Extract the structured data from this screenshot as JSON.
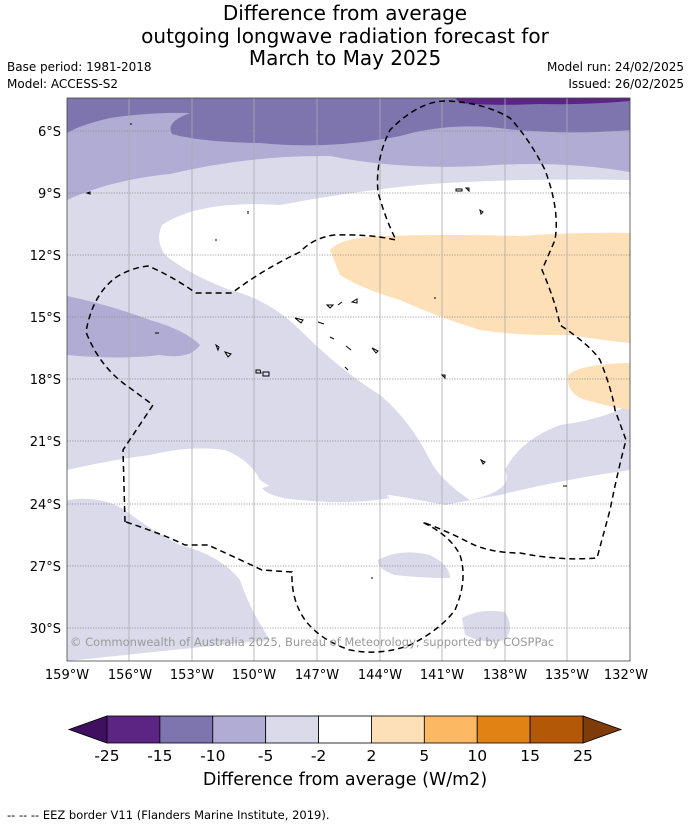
{
  "title": {
    "line1": "Difference from average",
    "line2": "outgoing longwave radiation forecast for",
    "line3": "March to May 2025"
  },
  "meta": {
    "base_period": "Base period: 1981-2018",
    "model": "Model: ACCESS-S2",
    "model_run": "Model run: 24/02/2025",
    "issued": "Issued: 26/02/2025"
  },
  "map": {
    "region_lon_range": [
      "159°W",
      "132°W"
    ],
    "region_lat_range": [
      "4.6°S",
      "31.5°S"
    ],
    "lat_ticks": [
      "6°S",
      "9°S",
      "12°S",
      "15°S",
      "18°S",
      "21°S",
      "24°S",
      "27°S",
      "30°S"
    ],
    "lon_ticks": [
      "159°W",
      "156°W",
      "153°W",
      "150°W",
      "147°W",
      "144°W",
      "141°W",
      "138°W",
      "135°W",
      "132°W"
    ],
    "grid": true,
    "copyright": "© Commonwealth of Australia 2025, Bureau of Meteorology, supported by COSPPac",
    "boundary_style": "dashed",
    "palette": {
      "le_-25": "#3f0f60",
      "-25_-15": "#5c2483",
      "-15_-10": "#7e74ae",
      "-10_-5": "#b1acd4",
      "-5_-2": "#dadaeb",
      "-2_2": "#ffffff",
      "2_5": "#fde0b7",
      "5_10": "#fdb863",
      "10_15": "#e08214",
      "15_25": "#b35806",
      "ge_25": "#7f3b08"
    }
  },
  "colorbar": {
    "ticks": [
      "-25",
      "-15",
      "-10",
      "-5",
      "-2",
      "2",
      "5",
      "10",
      "15",
      "25"
    ],
    "colors": [
      "#5c2483",
      "#7e74ae",
      "#b1acd4",
      "#dadaeb",
      "#ffffff",
      "#fde0b7",
      "#fdb863",
      "#e08214",
      "#b35806"
    ],
    "under_color": "#3f0f60",
    "over_color": "#7f3b08",
    "label": "Difference from average (W/m2)"
  },
  "footnote": "--  --  -- EEZ border V11 (Flanders Marine Institute, 2019)."
}
